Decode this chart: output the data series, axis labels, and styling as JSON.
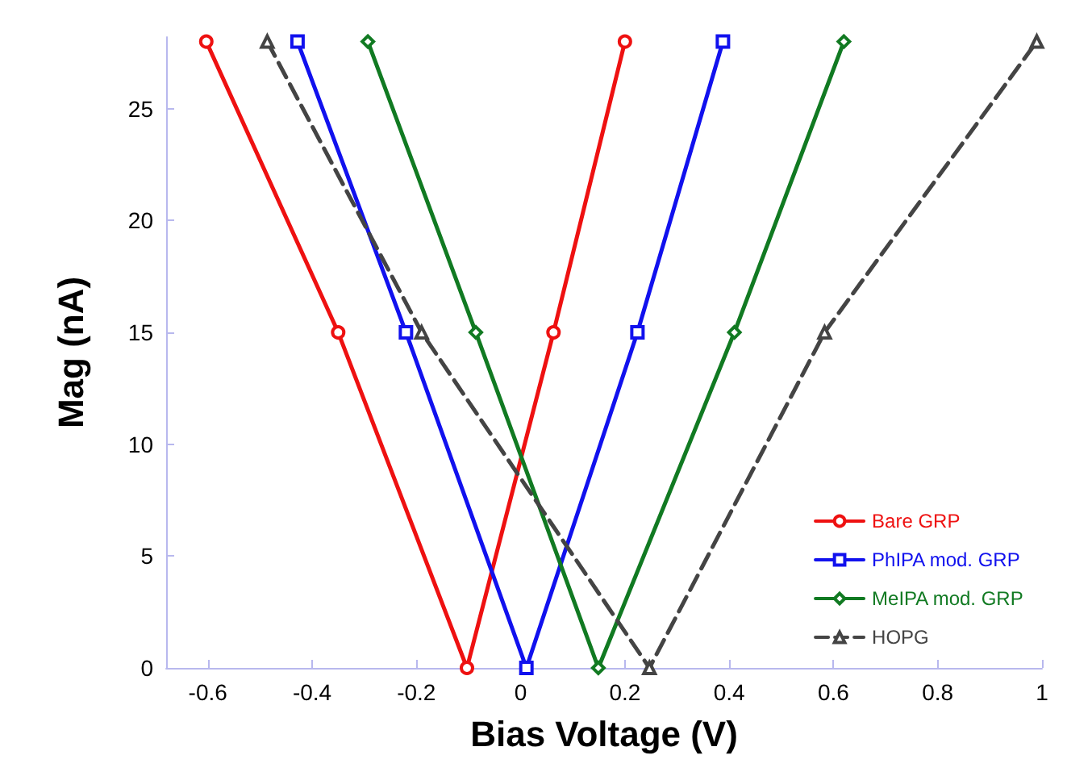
{
  "chart_data": {
    "type": "line",
    "xlabel": "Bias Voltage (V)",
    "ylabel": "Mag (nA)",
    "xlim": [
      -0.68,
      1.0
    ],
    "xticks": [
      -0.6,
      -0.4,
      -0.2,
      0,
      0.2,
      0.4,
      0.6,
      0.8,
      1
    ],
    "ylim": [
      0,
      28.2
    ],
    "yticks": [
      0,
      5,
      10,
      15,
      20,
      25
    ],
    "grid": false,
    "legend": "bottom right",
    "line_style": "solid",
    "series": [
      {
        "name": "Bare GRP",
        "color": "#ee1111",
        "marker": "circle",
        "x": [
          -0.603,
          -0.35,
          -0.103,
          0.063,
          0.2
        ],
        "values": [
          28,
          15,
          0,
          15,
          28
        ]
      },
      {
        "name": "PhIPA mod. GRP",
        "color": "#1111ee",
        "marker": "square",
        "x": [
          -0.428,
          -0.22,
          0.011,
          0.224,
          0.388
        ],
        "values": [
          28,
          15,
          0,
          15,
          28
        ]
      },
      {
        "name": "MeIPA mod. GRP",
        "color": "#117a22",
        "marker": "diamond",
        "x": [
          -0.293,
          -0.086,
          0.149,
          0.41,
          0.62
        ],
        "values": [
          28,
          15,
          0,
          15,
          28
        ]
      },
      {
        "name": "HOPG",
        "color": "#444444",
        "marker": "triangle",
        "line_style": "dashed",
        "x": [
          -0.486,
          -0.19,
          0.247,
          0.583,
          0.99
        ],
        "values": [
          28,
          15,
          0,
          15,
          28
        ]
      }
    ]
  }
}
